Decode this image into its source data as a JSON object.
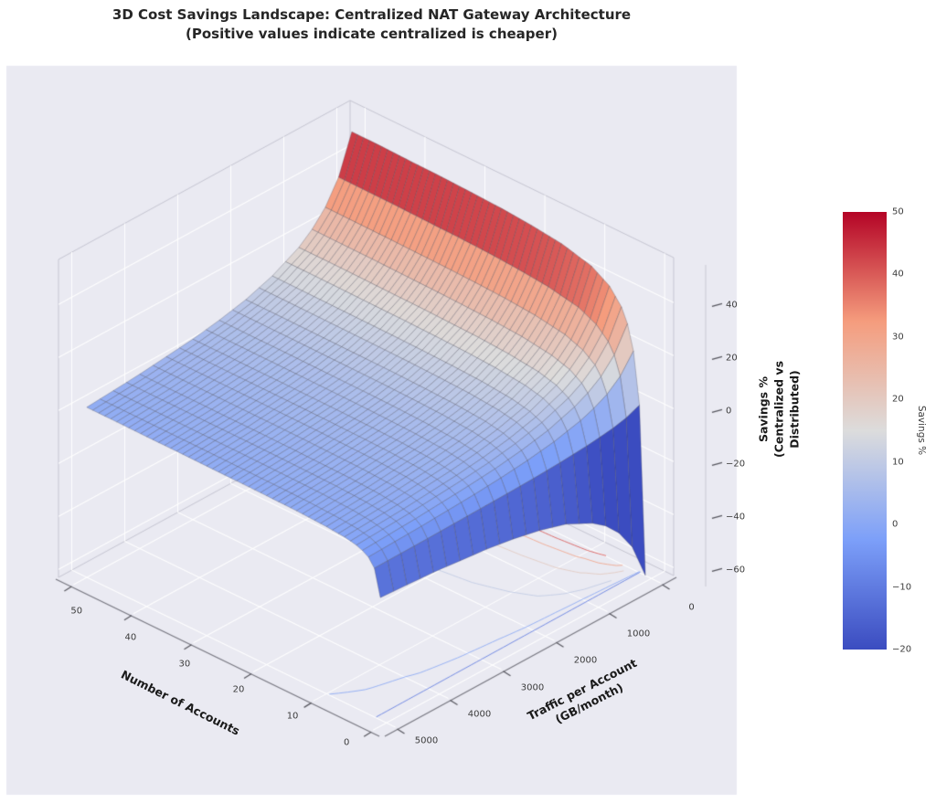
{
  "title": {
    "text": "3D Cost Savings Landscape: Centralized NAT Gateway Architecture\n(Positive values indicate centralized is cheaper)"
  },
  "style": {
    "figure_bg": "#FFFFFF",
    "axes_bg": "#EAEAF2",
    "grid_color": "#FFFFFF",
    "pane_edge_color": "#C6C6D2",
    "axis_line_color": "#777780",
    "tick_color": "#3C3C3C",
    "surface_edge_color": "rgba(70,70,85,0.55)"
  },
  "chart_data": {
    "type": "surface3d",
    "title": "3D Cost Savings Landscape: Centralized NAT Gateway Architecture (Positive values indicate centralized is cheaper)",
    "x": {
      "label": "Number of Accounts",
      "ticks": [
        0,
        10,
        20,
        30,
        40,
        50
      ],
      "range": [
        0,
        50
      ]
    },
    "y": {
      "label": "Traffic per Account\n(GB/month)",
      "ticks": [
        0,
        1000,
        2000,
        3000,
        4000,
        5000
      ],
      "range": [
        0,
        5000
      ]
    },
    "z": {
      "label": "Savings %\n(Centralized vs Distributed)",
      "ticks": [
        -60,
        -40,
        -20,
        0,
        20,
        40
      ],
      "range": [
        -63,
        57
      ]
    },
    "colormap": {
      "name": "coolwarm",
      "vmin": -20,
      "vmax": 50,
      "stops": [
        {
          "pos": 0.0,
          "color": "#3B4CC0"
        },
        {
          "pos": 0.25,
          "color": "#7C9FF9"
        },
        {
          "pos": 0.5,
          "color": "#DCDCDC"
        },
        {
          "pos": 0.75,
          "color": "#F59C7D"
        },
        {
          "pos": 1.0,
          "color": "#B40426"
        }
      ]
    },
    "colorbar": {
      "label": "Savings %",
      "ticks": [
        50,
        40,
        30,
        20,
        10,
        0,
        -10,
        -20
      ]
    },
    "accounts": [
      1,
      2,
      3,
      4,
      5,
      7,
      10,
      15,
      20,
      25,
      30,
      35,
      40,
      45,
      50
    ],
    "traffic_gb": [
      0,
      250,
      500,
      750,
      1000,
      1500,
      2000,
      2500,
      3000,
      4000,
      5000
    ],
    "savings_pct": [
      [
        -63.0,
        0.2,
        19.5,
        28.7,
        34.0,
        39.7,
        43.9,
        46.9,
        48.3,
        49.2,
        49.7,
        50.1,
        50.3,
        50.6,
        50.7
      ],
      [
        -49.5,
        -1.9,
        12.7,
        19.6,
        23.6,
        27.9,
        31.1,
        33.3,
        34.4,
        35.1,
        35.5,
        35.7,
        36.0,
        36.1,
        36.2
      ],
      [
        -41.5,
        -3.1,
        8.6,
        14.2,
        17.5,
        20.9,
        23.5,
        25.3,
        26.2,
        26.7,
        27.0,
        27.2,
        27.4,
        27.5,
        27.6
      ],
      [
        -36.1,
        -3.8,
        6.0,
        10.7,
        13.4,
        16.3,
        18.4,
        20.0,
        20.7,
        21.1,
        21.4,
        21.6,
        21.8,
        21.9,
        22.0
      ],
      [
        -32.4,
        -4.4,
        4.1,
        8.2,
        10.5,
        13.1,
        14.9,
        16.2,
        16.9,
        17.2,
        17.5,
        17.6,
        17.8,
        17.9,
        17.9
      ],
      [
        -27.3,
        -5.2,
        1.6,
        4.8,
        6.7,
        8.7,
        10.1,
        11.2,
        11.7,
        12.0,
        12.2,
        12.3,
        12.4,
        12.5,
        12.6
      ],
      [
        -24.2,
        -5.7,
        0.0,
        2.7,
        4.2,
        5.9,
        7.1,
        8.0,
        8.4,
        8.7,
        8.8,
        8.9,
        9.0,
        9.1,
        9.1
      ],
      [
        -22.0,
        -6.0,
        -1.1,
        1.2,
        2.5,
        4.0,
        5.0,
        5.8,
        6.2,
        6.4,
        6.5,
        6.6,
        6.7,
        6.7,
        6.8
      ],
      [
        -20.4,
        -6.2,
        -1.9,
        0.2,
        1.4,
        2.6,
        3.6,
        4.3,
        4.6,
        4.8,
        4.9,
        5.0,
        5.0,
        5.1,
        5.1
      ],
      [
        -18.2,
        -6.6,
        -3.0,
        -1.3,
        -0.3,
        0.7,
        1.5,
        2.1,
        2.3,
        2.5,
        2.6,
        2.6,
        2.7,
        2.7,
        2.8
      ],
      [
        -16.8,
        -6.8,
        -3.7,
        -2.3,
        -1.4,
        -0.5,
        0.1,
        0.6,
        0.8,
        0.9,
        1.0,
        1.1,
        1.1,
        1.2,
        1.2
      ]
    ],
    "floor_contour_levels": [
      40,
      30,
      20,
      10,
      0,
      -10
    ],
    "legend": null,
    "grid": true
  }
}
